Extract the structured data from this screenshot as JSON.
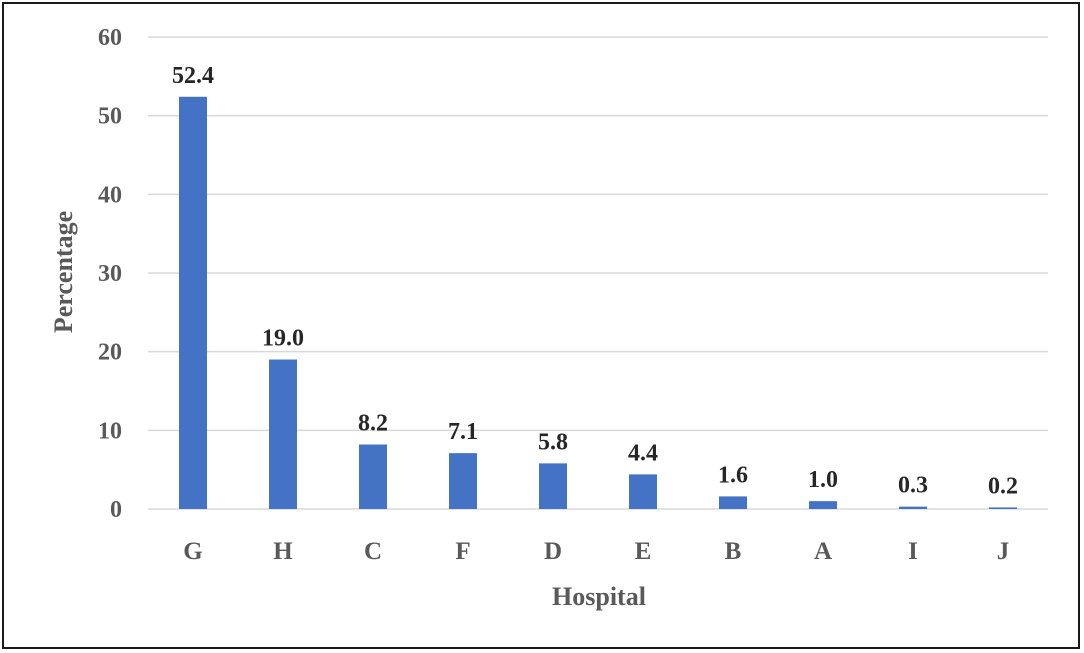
{
  "chart_data": {
    "type": "bar",
    "categories": [
      "G",
      "H",
      "C",
      "F",
      "D",
      "E",
      "B",
      "A",
      "I",
      "J"
    ],
    "values": [
      52.4,
      19.0,
      8.2,
      7.1,
      5.8,
      4.4,
      1.6,
      1.0,
      0.3,
      0.2
    ],
    "data_labels": [
      "52.4",
      "19.0",
      "8.2",
      "7.1",
      "5.8",
      "4.4",
      "1.6",
      "1.0",
      "0.3",
      "0.2"
    ],
    "xlabel": "Hospital",
    "ylabel": "Percentage",
    "ylim": [
      0,
      60
    ],
    "yticks": [
      0,
      10,
      20,
      30,
      40,
      50,
      60
    ],
    "grid": true,
    "bar_color": "#4472c4"
  }
}
